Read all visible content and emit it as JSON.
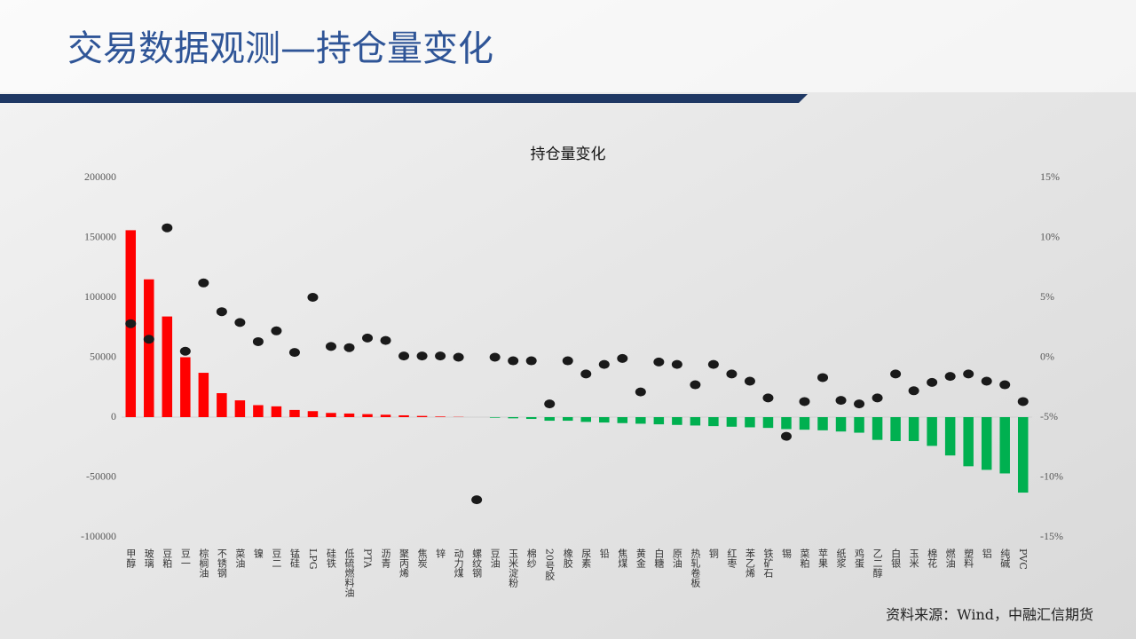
{
  "slide_title": "交易数据观测—持仓量变化",
  "source": "资料来源：Wind，中融汇信期货",
  "chart_data": {
    "type": "combo",
    "title": "持仓量变化",
    "categories": [
      "甲醇",
      "玻璃",
      "豆粕",
      "豆一",
      "棕榈油",
      "不锈钢",
      "菜油",
      "镍",
      "豆二",
      "锰硅",
      "LPG",
      "硅铁",
      "低硫燃料油",
      "PTA",
      "沥青",
      "聚丙烯",
      "焦炭",
      "锌",
      "动力煤",
      "螺纹钢",
      "豆油",
      "玉米淀粉",
      "棉纱",
      "20号胶",
      "橡胶",
      "尿素",
      "铅",
      "焦煤",
      "黄金",
      "白糖",
      "原油",
      "热轧卷板",
      "铜",
      "红枣",
      "苯乙烯",
      "铁矿石",
      "锡",
      "菜粕",
      "苹果",
      "纸浆",
      "鸡蛋",
      "乙二醇",
      "白银",
      "玉米",
      "棉花",
      "燃油",
      "塑料",
      "铝",
      "纯碱",
      "PVC"
    ],
    "series": [
      {
        "type": "bar",
        "positive_color": "#ff0000",
        "negative_color": "#00b050",
        "values": [
          156000,
          115000,
          84000,
          50000,
          37000,
          20000,
          14000,
          10000,
          9000,
          6000,
          5000,
          3500,
          3000,
          2500,
          2000,
          1500,
          1000,
          500,
          200,
          0,
          -500,
          -1000,
          -1500,
          -3000,
          -3000,
          -4000,
          -4500,
          -5000,
          -5500,
          -6000,
          -6500,
          -7000,
          -7500,
          -8000,
          -8500,
          -9000,
          -10000,
          -10500,
          -11000,
          -12000,
          -13000,
          -19000,
          -20000,
          -20000,
          -24000,
          -32000,
          -41000,
          -44000,
          -47000,
          -63000
        ]
      },
      {
        "type": "scatter",
        "axis": "y2",
        "color": "#1a1a1a",
        "values": [
          2.8,
          1.5,
          10.8,
          0.5,
          6.2,
          3.8,
          2.9,
          1.3,
          2.2,
          0.4,
          5.0,
          0.9,
          0.8,
          1.6,
          1.4,
          0.1,
          0.1,
          0.1,
          0,
          -11.9,
          0,
          -0.3,
          -0.3,
          -3.9,
          -0.3,
          -1.4,
          -0.6,
          -0.1,
          -2.9,
          -0.4,
          -0.6,
          -2.3,
          -0.6,
          -1.4,
          -2.0,
          -3.4,
          -6.6,
          -3.7,
          -1.7,
          -3.6,
          -3.9,
          -3.4,
          -1.4,
          -2.8,
          -2.1,
          -1.6,
          -1.4,
          -2.0,
          -2.3,
          -3.7
        ]
      }
    ],
    "ylim": [
      -100000,
      200000
    ],
    "yticks": [
      -100000,
      -50000,
      0,
      50000,
      100000,
      150000,
      200000
    ],
    "y2lim": [
      -15,
      15
    ],
    "y2ticks": [
      {
        "value": -15,
        "label": "-15%"
      },
      {
        "value": -10,
        "label": "-10%"
      },
      {
        "value": -5,
        "label": "-5%"
      },
      {
        "value": 0,
        "label": "0%"
      },
      {
        "value": 5,
        "label": "5%"
      },
      {
        "value": 10,
        "label": "10%"
      },
      {
        "value": 15,
        "label": "15%"
      }
    ]
  }
}
